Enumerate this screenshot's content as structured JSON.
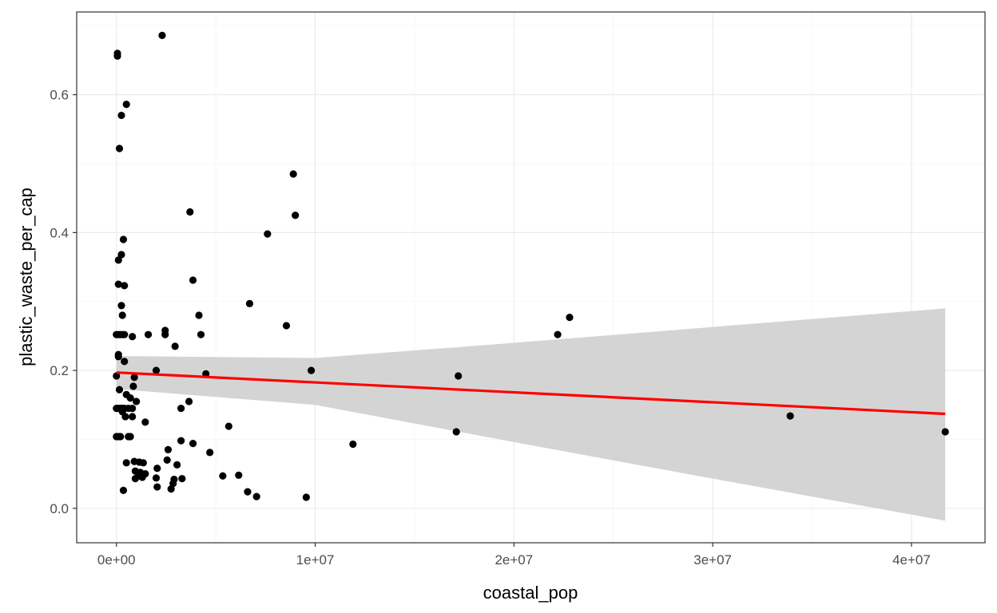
{
  "chart_data": {
    "type": "scatter",
    "title": "",
    "xlabel": "coastal_pop",
    "ylabel": "plastic_waste_per_cap",
    "xlim": [
      -2000000,
      43700000
    ],
    "ylim": [
      -0.05,
      0.72
    ],
    "x_ticks": [
      0,
      10000000,
      20000000,
      30000000,
      40000000
    ],
    "x_tick_labels": [
      "0e+00",
      "1e+07",
      "2e+07",
      "3e+07",
      "4e+07"
    ],
    "y_ticks": [
      0.0,
      0.2,
      0.4,
      0.6
    ],
    "y_tick_labels": [
      "0.0",
      "0.2",
      "0.4",
      "0.6"
    ],
    "grid": true,
    "colors": {
      "points": "#000000",
      "fit_line": "#ff0000",
      "confidence_band": "#d4d4d4",
      "grid_major": "#ebebeb",
      "grid_minor": "#f5f5f5",
      "panel_border": "#333333"
    },
    "series": [
      {
        "type": "scatter",
        "points": [
          [
            50000,
            0.66
          ],
          [
            50000,
            0.656
          ],
          [
            2300000,
            0.686
          ],
          [
            500000,
            0.586
          ],
          [
            250000,
            0.57
          ],
          [
            150000,
            0.522
          ],
          [
            8900000,
            0.485
          ],
          [
            9000000,
            0.425
          ],
          [
            3700000,
            0.43
          ],
          [
            7600000,
            0.398
          ],
          [
            350000,
            0.39
          ],
          [
            250000,
            0.368
          ],
          [
            100000,
            0.36
          ],
          [
            100000,
            0.325
          ],
          [
            400000,
            0.323
          ],
          [
            3850000,
            0.331
          ],
          [
            6700000,
            0.297
          ],
          [
            250000,
            0.294
          ],
          [
            300000,
            0.28
          ],
          [
            4150000,
            0.28
          ],
          [
            22800000,
            0.277
          ],
          [
            8550000,
            0.265
          ],
          [
            22200000,
            0.252
          ],
          [
            2450000,
            0.258
          ],
          [
            2450000,
            0.252
          ],
          [
            4250000,
            0.252
          ],
          [
            1600000,
            0.252
          ],
          [
            800000,
            0.249
          ],
          [
            2950000,
            0.235
          ],
          [
            0,
            0.252
          ],
          [
            100000,
            0.252
          ],
          [
            200000,
            0.252
          ],
          [
            300000,
            0.252
          ],
          [
            400000,
            0.252
          ],
          [
            100000,
            0.223
          ],
          [
            100000,
            0.22
          ],
          [
            400000,
            0.213
          ],
          [
            2000000,
            0.2
          ],
          [
            9800000,
            0.2
          ],
          [
            4500000,
            0.195
          ],
          [
            17200000,
            0.192
          ],
          [
            0,
            0.192
          ],
          [
            900000,
            0.19
          ],
          [
            150000,
            0.172
          ],
          [
            850000,
            0.177
          ],
          [
            500000,
            0.165
          ],
          [
            700000,
            0.16
          ],
          [
            1000000,
            0.155
          ],
          [
            3650000,
            0.155
          ],
          [
            0,
            0.145
          ],
          [
            100000,
            0.145
          ],
          [
            200000,
            0.145
          ],
          [
            300000,
            0.145
          ],
          [
            400000,
            0.145
          ],
          [
            600000,
            0.145
          ],
          [
            800000,
            0.145
          ],
          [
            3250000,
            0.145
          ],
          [
            300000,
            0.14
          ],
          [
            450000,
            0.133
          ],
          [
            800000,
            0.133
          ],
          [
            1450000,
            0.125
          ],
          [
            5650000,
            0.119
          ],
          [
            33900000,
            0.134
          ],
          [
            17100000,
            0.111
          ],
          [
            41700000,
            0.111
          ],
          [
            0,
            0.104
          ],
          [
            100000,
            0.104
          ],
          [
            200000,
            0.104
          ],
          [
            600000,
            0.104
          ],
          [
            700000,
            0.104
          ],
          [
            3250000,
            0.098
          ],
          [
            3850000,
            0.094
          ],
          [
            11900000,
            0.093
          ],
          [
            2600000,
            0.085
          ],
          [
            4700000,
            0.081
          ],
          [
            2550000,
            0.07
          ],
          [
            500000,
            0.066
          ],
          [
            900000,
            0.068
          ],
          [
            1150000,
            0.067
          ],
          [
            1350000,
            0.066
          ],
          [
            3050000,
            0.063
          ],
          [
            2050000,
            0.058
          ],
          [
            950000,
            0.054
          ],
          [
            1200000,
            0.052
          ],
          [
            1450000,
            0.05
          ],
          [
            1100000,
            0.047
          ],
          [
            950000,
            0.043
          ],
          [
            1300000,
            0.045
          ],
          [
            2000000,
            0.044
          ],
          [
            5350000,
            0.047
          ],
          [
            6150000,
            0.048
          ],
          [
            2900000,
            0.042
          ],
          [
            3300000,
            0.043
          ],
          [
            2850000,
            0.036
          ],
          [
            2050000,
            0.031
          ],
          [
            2750000,
            0.028
          ],
          [
            6600000,
            0.024
          ],
          [
            350000,
            0.026
          ],
          [
            7050000,
            0.017
          ],
          [
            9550000,
            0.016
          ]
        ]
      },
      {
        "type": "line",
        "name": "",
        "x": [
          0,
          41700000
        ],
        "y": [
          0.197,
          0.137
        ]
      },
      {
        "type": "area",
        "name": "",
        "x": [
          0,
          10000000,
          20000000,
          30000000,
          41700000
        ],
        "lower": [
          0.173,
          0.15,
          0.096,
          0.043,
          -0.018
        ],
        "upper": [
          0.221,
          0.218,
          0.24,
          0.263,
          0.29
        ]
      }
    ]
  }
}
